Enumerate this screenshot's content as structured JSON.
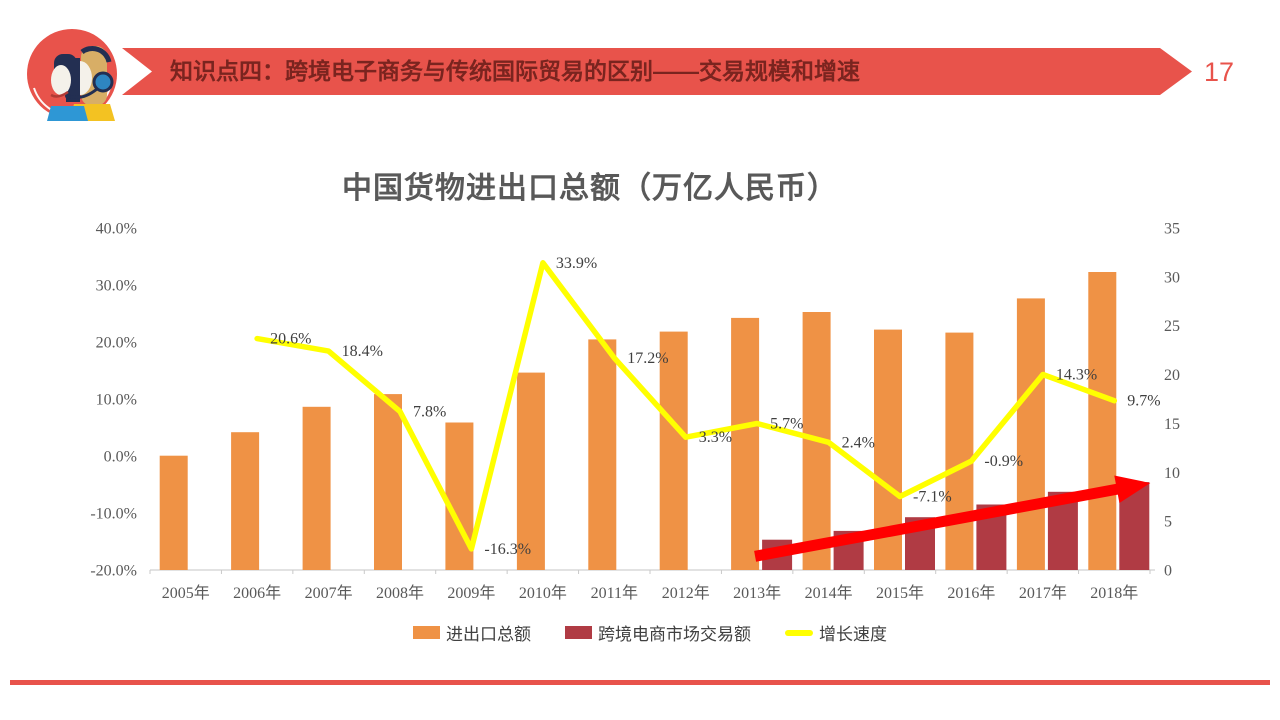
{
  "slide": {
    "page_number": "17",
    "header_title": "知识点四：跨境电子商务与传统国际贸易的区别——交易规模和增速"
  },
  "theme": {
    "accent": "#E8534B",
    "header_text": "#7A241F",
    "title_text": "#595959",
    "axis_text": "#595959",
    "orange": "#EF9245",
    "crimson": "#B03B44",
    "yellow": "#FFFF00",
    "arrow_red": "#FF0000"
  },
  "chart_data": {
    "type": "bar",
    "subtype": "combo-bar-line-dual-axis",
    "title": "中国货物进出口总额（万亿人民币）",
    "categories": [
      "2005年",
      "2006年",
      "2007年",
      "2008年",
      "2009年",
      "2010年",
      "2011年",
      "2012年",
      "2013年",
      "2014年",
      "2015年",
      "2016年",
      "2017年",
      "2018年"
    ],
    "series": [
      {
        "name": "进出口总额",
        "type": "bar",
        "axis": "right",
        "color": "#EF9245",
        "values": [
          11.7,
          14.1,
          16.7,
          18.0,
          15.1,
          20.2,
          23.6,
          24.4,
          25.8,
          26.4,
          24.6,
          24.3,
          27.8,
          30.5
        ]
      },
      {
        "name": "跨境电商市场交易额",
        "type": "bar",
        "axis": "right",
        "color": "#B03B44",
        "values": [
          null,
          null,
          null,
          null,
          null,
          null,
          null,
          null,
          3.1,
          4.0,
          5.4,
          6.7,
          8.0,
          9.0
        ]
      },
      {
        "name": "增长速度",
        "type": "line",
        "axis": "left",
        "color": "#FFFF00",
        "data_labels": true,
        "values": [
          null,
          20.6,
          18.4,
          7.8,
          -16.3,
          33.9,
          17.2,
          3.3,
          5.7,
          2.4,
          -7.1,
          -0.9,
          14.3,
          9.7
        ]
      }
    ],
    "left_axis": {
      "min": -20,
      "max": 40,
      "step": 10,
      "unit": "%",
      "tick_labels": [
        "40.0%",
        "30.0%",
        "20.0%",
        "10.0%",
        "0.0%",
        "-10.0%",
        "-20.0%"
      ]
    },
    "right_axis": {
      "min": 0,
      "max": 35,
      "step": 5,
      "tick_labels": [
        "35",
        "30",
        "25",
        "20",
        "15",
        "10",
        "5",
        "0"
      ]
    },
    "legend": [
      "进出口总额",
      "跨境电商市场交易额",
      "增长速度"
    ],
    "legend_position": "bottom",
    "gridlines": false,
    "annotations": [
      {
        "shape": "arrow",
        "color": "#FF0000",
        "from_category": "2013年",
        "from_y_value": 1.4,
        "to_category": "2018年",
        "to_y_value": 8.9
      }
    ]
  }
}
